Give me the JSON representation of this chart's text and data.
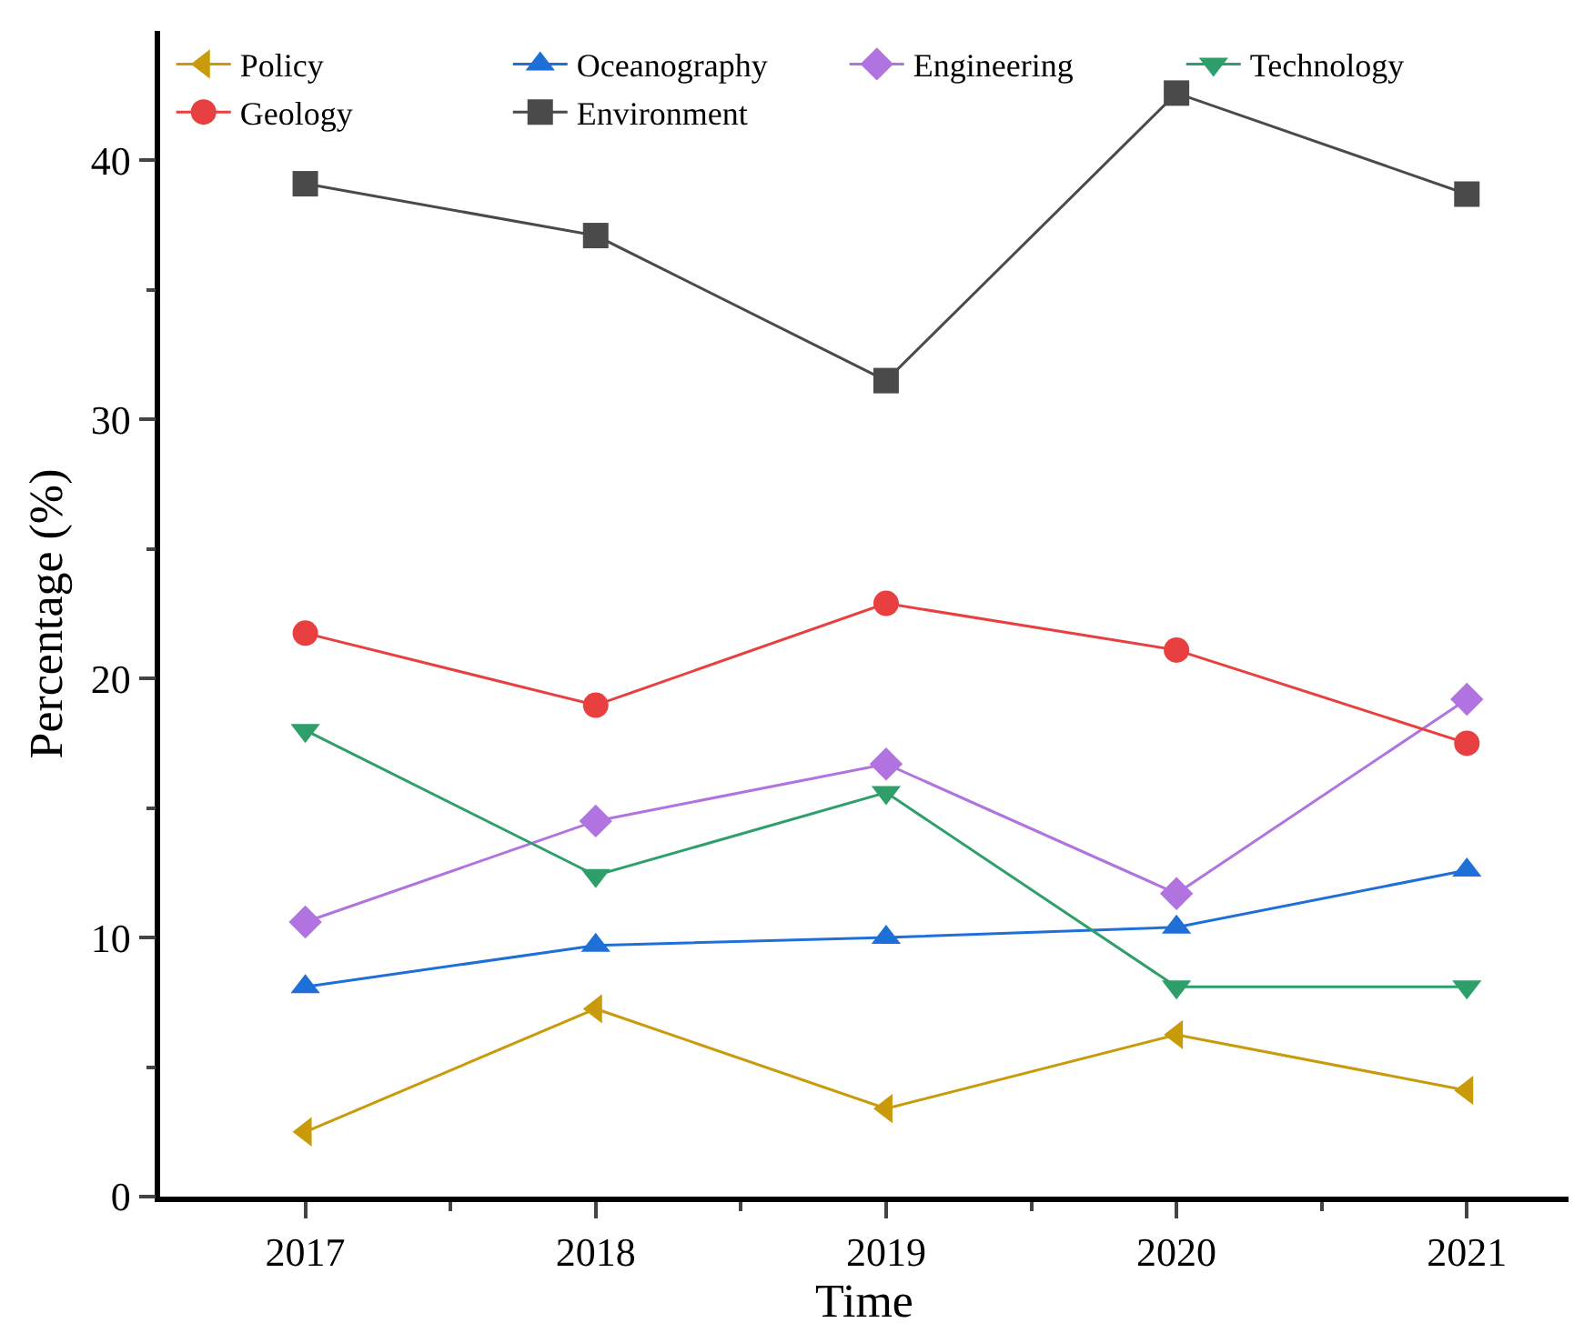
{
  "chart_data": {
    "type": "line",
    "xlabel": "Time",
    "ylabel": "Percentage (%)",
    "x": [
      2017,
      2018,
      2019,
      2020,
      2021
    ],
    "xlim": [
      2016.5,
      2021.35
    ],
    "xticks": [
      2017,
      {
        "value": 2017.5,
        "label": null
      },
      2018,
      {
        "value": 2018.5,
        "label": null
      },
      2019,
      {
        "value": 2019.5,
        "label": null
      },
      2020,
      {
        "value": 2020.5,
        "label": null
      },
      2021
    ],
    "ylim": [
      0,
      45
    ],
    "yticks": [
      0,
      {
        "value": 5,
        "label": null
      },
      10,
      {
        "value": 15,
        "label": null
      },
      20,
      {
        "value": 25,
        "label": null
      },
      30,
      {
        "value": 35,
        "label": null
      },
      40
    ],
    "legend": "top left",
    "series": [
      {
        "name": "Policy",
        "color": "#c99a0a",
        "marker": "triangle-left",
        "values": [
          2.5,
          7.25,
          3.4,
          6.25,
          4.1
        ]
      },
      {
        "name": "Oceanography",
        "color": "#1f6fd8",
        "marker": "triangle",
        "values": [
          8.1,
          9.7,
          10.0,
          10.4,
          12.6
        ]
      },
      {
        "name": "Engineering",
        "color": "#b073e0",
        "marker": "diamond",
        "values": [
          10.6,
          14.5,
          16.7,
          11.7,
          19.2
        ]
      },
      {
        "name": "Technology",
        "color": "#2e9e6a",
        "marker": "triangle-down",
        "values": [
          18.0,
          12.4,
          15.6,
          8.1,
          8.1
        ]
      },
      {
        "name": "Geology",
        "color": "#e84040",
        "marker": "circle",
        "values": [
          21.75,
          18.97,
          22.9,
          21.1,
          17.5
        ]
      },
      {
        "name": "Environment",
        "color": "#4a4a4a",
        "marker": "square",
        "values": [
          39.1,
          37.1,
          31.5,
          42.6,
          38.7
        ]
      }
    ]
  }
}
